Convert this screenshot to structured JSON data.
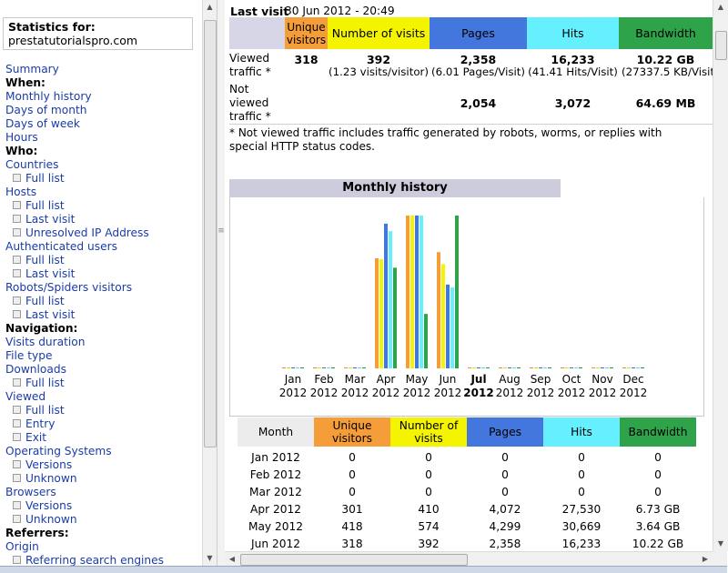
{
  "left": {
    "stats_label": "Statistics for:",
    "site": "prestatutorialspro.com",
    "nav": [
      {
        "type": "link",
        "label": "Summary"
      },
      {
        "type": "head",
        "label": "When:"
      },
      {
        "type": "link",
        "label": "Monthly history"
      },
      {
        "type": "link",
        "label": "Days of month"
      },
      {
        "type": "link",
        "label": "Days of week"
      },
      {
        "type": "link",
        "label": "Hours"
      },
      {
        "type": "head",
        "label": "Who:"
      },
      {
        "type": "link",
        "label": "Countries"
      },
      {
        "type": "sub",
        "label": "Full list"
      },
      {
        "type": "link",
        "label": "Hosts"
      },
      {
        "type": "sub",
        "label": "Full list"
      },
      {
        "type": "sub",
        "label": "Last visit"
      },
      {
        "type": "sub",
        "label": "Unresolved IP Address"
      },
      {
        "type": "link",
        "label": "Authenticated users"
      },
      {
        "type": "sub",
        "label": "Full list"
      },
      {
        "type": "sub",
        "label": "Last visit"
      },
      {
        "type": "link",
        "label": "Robots/Spiders visitors"
      },
      {
        "type": "sub",
        "label": "Full list"
      },
      {
        "type": "sub",
        "label": "Last visit"
      },
      {
        "type": "head",
        "label": "Navigation:"
      },
      {
        "type": "link",
        "label": "Visits duration"
      },
      {
        "type": "link",
        "label": "File type"
      },
      {
        "type": "link",
        "label": "Downloads"
      },
      {
        "type": "sub",
        "label": "Full list"
      },
      {
        "type": "link",
        "label": "Viewed"
      },
      {
        "type": "sub",
        "label": "Full list"
      },
      {
        "type": "sub",
        "label": "Entry"
      },
      {
        "type": "sub",
        "label": "Exit"
      },
      {
        "type": "link",
        "label": "Operating Systems"
      },
      {
        "type": "sub",
        "label": "Versions"
      },
      {
        "type": "sub",
        "label": "Unknown"
      },
      {
        "type": "link",
        "label": "Browsers"
      },
      {
        "type": "sub",
        "label": "Versions"
      },
      {
        "type": "sub",
        "label": "Unknown"
      },
      {
        "type": "head",
        "label": "Referrers:"
      },
      {
        "type": "link",
        "label": "Origin"
      },
      {
        "type": "sub",
        "label": "Referring search engines"
      }
    ]
  },
  "summary": {
    "last_visit_label": "Last visit",
    "last_visit_value": "30 Jun 2012 - 20:49",
    "headers": {
      "unique": "Unique visitors",
      "visits": "Number of visits",
      "pages": "Pages",
      "hits": "Hits",
      "bandwidth": "Bandwidth"
    },
    "viewed_label": "Viewed traffic *",
    "viewed": {
      "unique": "318",
      "visits": "392",
      "visits_sub": "(1.23 visits/visitor)",
      "pages": "2,358",
      "pages_sub": "(6.01 Pages/Visit)",
      "hits": "16,233",
      "hits_sub": "(41.41 Hits/Visit)",
      "bandwidth": "10.22 GB",
      "bandwidth_sub": "(27337.5 KB/Visit)"
    },
    "notviewed_label": "Not viewed traffic *",
    "notviewed": {
      "pages": "2,054",
      "hits": "3,072",
      "bandwidth": "64.69 MB"
    },
    "footnote": "* Not viewed traffic includes traffic generated by robots, worms, or replies with special HTTP status codes."
  },
  "monthly": {
    "title": "Monthly history",
    "colors": {
      "unique": "#f59d38",
      "visits": "#f4f400",
      "pages": "#4477dd",
      "hits": "#66f0ff",
      "bandwidth": "#2ea34a"
    },
    "table_headers": {
      "month": "Month",
      "unique": "Unique visitors",
      "visits": "Number of visits",
      "pages": "Pages",
      "hits": "Hits",
      "bandwidth": "Bandwidth"
    },
    "rows": [
      [
        "Jan 2012",
        "0",
        "0",
        "0",
        "0",
        "0"
      ],
      [
        "Feb 2012",
        "0",
        "0",
        "0",
        "0",
        "0"
      ],
      [
        "Mar 2012",
        "0",
        "0",
        "0",
        "0",
        "0"
      ],
      [
        "Apr 2012",
        "301",
        "410",
        "4,072",
        "27,530",
        "6.73 GB"
      ],
      [
        "May 2012",
        "418",
        "574",
        "4,299",
        "30,669",
        "3.64 GB"
      ],
      [
        "Jun 2012",
        "318",
        "392",
        "2,358",
        "16,233",
        "10.22 GB"
      ]
    ]
  },
  "chart_data": {
    "type": "bar",
    "categories": [
      "Jan 2012",
      "Feb 2012",
      "Mar 2012",
      "Apr 2012",
      "May 2012",
      "Jun 2012",
      "Jul 2012",
      "Aug 2012",
      "Sep 2012",
      "Oct 2012",
      "Nov 2012",
      "Dec 2012"
    ],
    "month_labels": [
      "Jan",
      "Feb",
      "Mar",
      "Apr",
      "May",
      "Jun",
      "Jul",
      "Aug",
      "Sep",
      "Oct",
      "Nov",
      "Dec"
    ],
    "year_label": "2012",
    "current_month_index": 6,
    "series": [
      {
        "key": "unique",
        "values": [
          0,
          0,
          0,
          301,
          418,
          318,
          0,
          0,
          0,
          0,
          0,
          0
        ]
      },
      {
        "key": "visits",
        "values": [
          0,
          0,
          0,
          410,
          574,
          392,
          0,
          0,
          0,
          0,
          0,
          0
        ]
      },
      {
        "key": "pages",
        "values": [
          0,
          0,
          0,
          4072,
          4299,
          2358,
          0,
          0,
          0,
          0,
          0,
          0
        ]
      },
      {
        "key": "hits",
        "values": [
          0,
          0,
          0,
          27530,
          30669,
          16233,
          0,
          0,
          0,
          0,
          0,
          0
        ]
      },
      {
        "key": "bandwidth",
        "values": [
          0,
          0,
          0,
          6.73,
          3.64,
          10.22,
          0,
          0,
          0,
          0,
          0,
          0
        ]
      }
    ]
  }
}
